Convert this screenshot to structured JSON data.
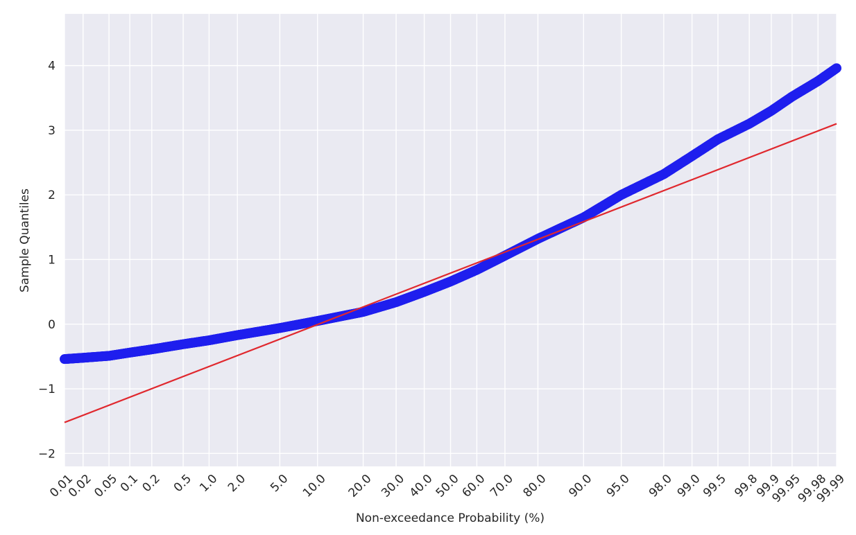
{
  "chart_data": {
    "type": "scatter",
    "title": "",
    "xlabel": "Non-exceedance Probability (%)",
    "ylabel": "Sample Quantiles",
    "x_scale": "normal-probability",
    "xlim": [
      0.01,
      99.99
    ],
    "ylim": [
      -2.2,
      4.8
    ],
    "grid": true,
    "background_color": "#EAEAF2",
    "grid_color": "#FFFFFF",
    "x_ticks": [
      {
        "value": 0.01,
        "label": "0.01"
      },
      {
        "value": 0.02,
        "label": "0.02"
      },
      {
        "value": 0.05,
        "label": "0.05"
      },
      {
        "value": 0.1,
        "label": "0.1"
      },
      {
        "value": 0.2,
        "label": "0.2"
      },
      {
        "value": 0.5,
        "label": "0.5"
      },
      {
        "value": 1.0,
        "label": "1.0"
      },
      {
        "value": 2.0,
        "label": "2.0"
      },
      {
        "value": 5.0,
        "label": "5.0"
      },
      {
        "value": 10.0,
        "label": "10.0"
      },
      {
        "value": 20.0,
        "label": "20.0"
      },
      {
        "value": 30.0,
        "label": "30.0"
      },
      {
        "value": 40.0,
        "label": "40.0"
      },
      {
        "value": 50.0,
        "label": "50.0"
      },
      {
        "value": 60.0,
        "label": "60.0"
      },
      {
        "value": 70.0,
        "label": "70.0"
      },
      {
        "value": 80.0,
        "label": "80.0"
      },
      {
        "value": 90.0,
        "label": "90.0"
      },
      {
        "value": 95.0,
        "label": "95.0"
      },
      {
        "value": 98.0,
        "label": "98.0"
      },
      {
        "value": 99.0,
        "label": "99.0"
      },
      {
        "value": 99.5,
        "label": "99.5"
      },
      {
        "value": 99.8,
        "label": "99.8"
      },
      {
        "value": 99.9,
        "label": "99.9"
      },
      {
        "value": 99.95,
        "label": "99.95"
      },
      {
        "value": 99.98,
        "label": "99.98"
      },
      {
        "value": 99.99,
        "label": "99.99"
      }
    ],
    "y_ticks": [
      {
        "value": -2,
        "label": "−2"
      },
      {
        "value": -1,
        "label": "−1"
      },
      {
        "value": 0,
        "label": "0"
      },
      {
        "value": 1,
        "label": "1"
      },
      {
        "value": 2,
        "label": "2"
      },
      {
        "value": 3,
        "label": "3"
      },
      {
        "value": 4,
        "label": "4"
      }
    ],
    "series": [
      {
        "kind": "points",
        "color": "#1F1FEE",
        "points": [
          {
            "x": 0.01,
            "y": -0.54
          },
          {
            "x": 0.02,
            "y": -0.52
          },
          {
            "x": 0.05,
            "y": -0.49
          },
          {
            "x": 0.1,
            "y": -0.44
          },
          {
            "x": 0.2,
            "y": -0.39
          },
          {
            "x": 0.5,
            "y": -0.31
          },
          {
            "x": 1.0,
            "y": -0.25
          },
          {
            "x": 2.0,
            "y": -0.17
          },
          {
            "x": 5.0,
            "y": -0.06
          },
          {
            "x": 10.0,
            "y": 0.05
          },
          {
            "x": 20.0,
            "y": 0.19
          },
          {
            "x": 30.0,
            "y": 0.34
          },
          {
            "x": 40.0,
            "y": 0.5
          },
          {
            "x": 50.0,
            "y": 0.66
          },
          {
            "x": 60.0,
            "y": 0.84
          },
          {
            "x": 70.0,
            "y": 1.06
          },
          {
            "x": 80.0,
            "y": 1.32
          },
          {
            "x": 90.0,
            "y": 1.65
          },
          {
            "x": 95.0,
            "y": 2.0
          },
          {
            "x": 98.0,
            "y": 2.32
          },
          {
            "x": 99.0,
            "y": 2.6
          },
          {
            "x": 99.5,
            "y": 2.86
          },
          {
            "x": 99.8,
            "y": 3.1
          },
          {
            "x": 99.9,
            "y": 3.3
          },
          {
            "x": 99.95,
            "y": 3.52
          },
          {
            "x": 99.98,
            "y": 3.76
          },
          {
            "x": 99.99,
            "y": 3.96
          }
        ]
      },
      {
        "kind": "fit-line",
        "color": "#E0282E",
        "points": [
          {
            "x": 0.01,
            "y": -1.52
          },
          {
            "x": 99.99,
            "y": 3.1
          }
        ]
      }
    ]
  }
}
